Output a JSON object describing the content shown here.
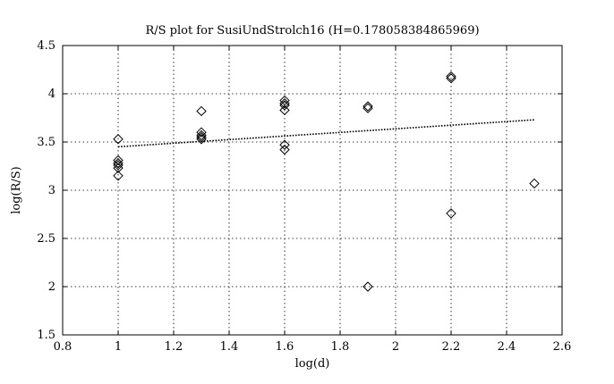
{
  "chart_data": {
    "type": "scatter",
    "title": "R/S plot for SusiUndStrolch16 (H=0.178058384865969)",
    "xlabel": "log(d)",
    "ylabel": "log(R/S)",
    "xlim": [
      0.8,
      2.6
    ],
    "ylim": [
      1.5,
      4.5
    ],
    "xticks": [
      0.8,
      1,
      1.2,
      1.4,
      1.6,
      1.8,
      2,
      2.2,
      2.4,
      2.6
    ],
    "yticks": [
      1.5,
      2,
      2.5,
      3,
      3.5,
      4,
      4.5
    ],
    "xtick_labels": [
      "0.8",
      "1",
      "1.2",
      "1.4",
      "1.6",
      "1.8",
      "2",
      "2.2",
      "2.4",
      "2.6"
    ],
    "ytick_labels": [
      "1.5",
      "2",
      "2.5",
      "3",
      "3.5",
      "4",
      "4.5"
    ],
    "grid": true,
    "points": {
      "x": [
        1,
        1,
        1,
        1,
        1,
        1,
        1.3,
        1.3,
        1.3,
        1.3,
        1.3,
        1.6,
        1.6,
        1.6,
        1.6,
        1.6,
        1.6,
        1.9,
        1.9,
        1.9,
        2.2,
        2.2,
        2.2,
        2.5
      ],
      "y": [
        3.53,
        3.31,
        3.28,
        3.26,
        3.23,
        3.15,
        3.82,
        3.6,
        3.57,
        3.55,
        3.53,
        3.93,
        3.88,
        3.83,
        3.47,
        3.42,
        3.9,
        3.87,
        3.85,
        2.0,
        4.18,
        4.16,
        2.76,
        3.07
      ]
    },
    "fit_line": {
      "x": [
        1,
        2.5
      ],
      "y": [
        3.45,
        3.73
      ]
    }
  }
}
